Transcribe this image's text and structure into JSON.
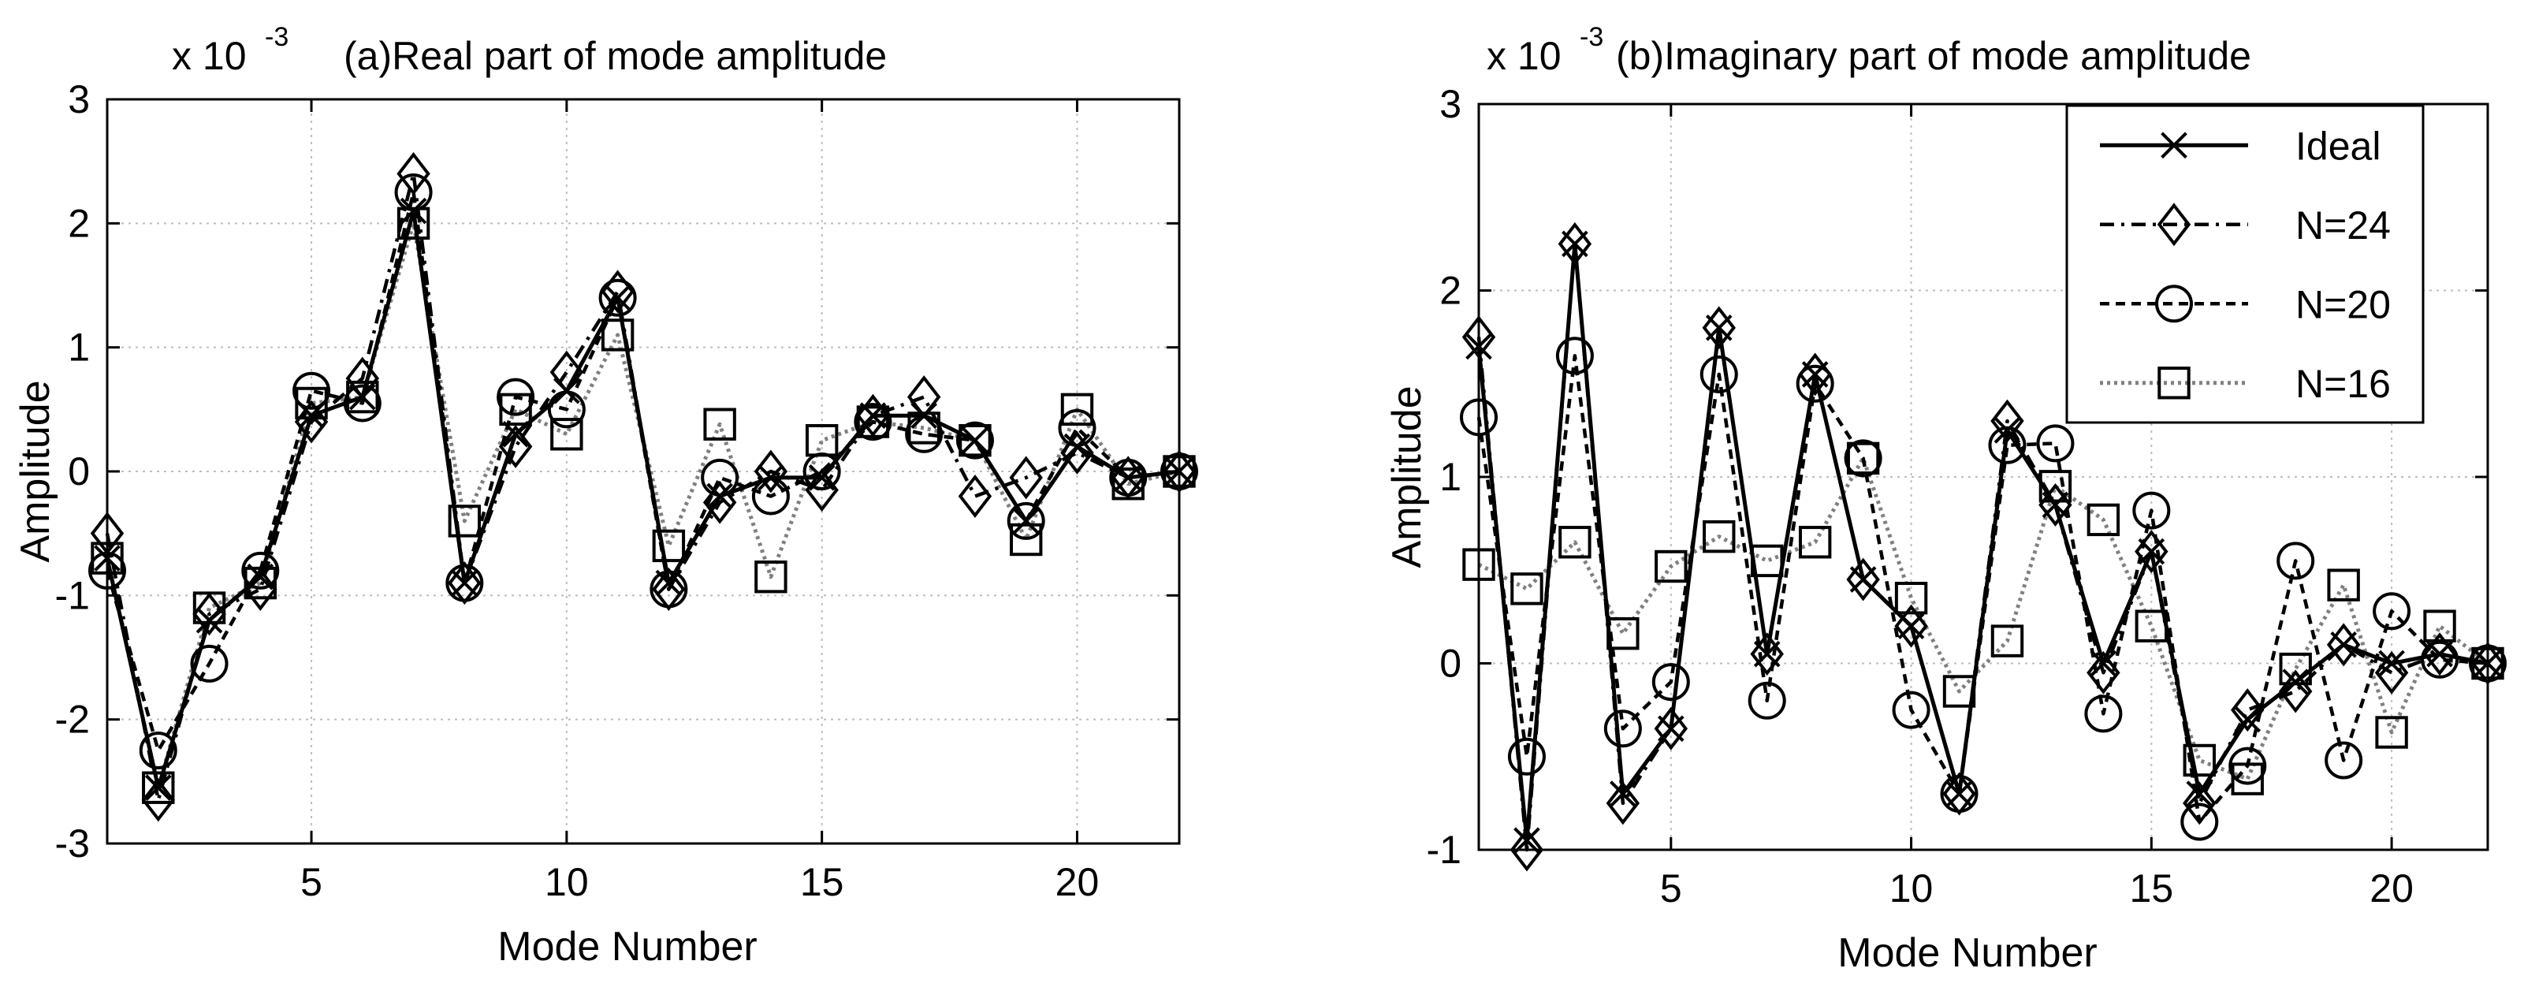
{
  "colors": {
    "background": "#ffffff",
    "ink": "#000000",
    "grid": "#bdbdbd",
    "n16_line": "#808080"
  },
  "chart_data": [
    {
      "type": "line",
      "id": "a",
      "title": "(a)Real part of mode amplitude",
      "exponent_label": "x 10",
      "exponent_power": "-3",
      "xlabel": "Mode Number",
      "ylabel": "Amplitude",
      "xlim": [
        1,
        22
      ],
      "ylim": [
        -3,
        3
      ],
      "xticks": [
        5,
        10,
        15,
        20
      ],
      "yticks": [
        -3,
        -2,
        -1,
        0,
        1,
        2,
        3
      ],
      "grid": true,
      "x": [
        1,
        2,
        3,
        4,
        5,
        6,
        7,
        8,
        9,
        10,
        11,
        12,
        13,
        14,
        15,
        16,
        17,
        18,
        19,
        20,
        21,
        22
      ],
      "series": [
        {
          "name": "Ideal",
          "marker": "x",
          "line": "solid",
          "values": [
            -0.7,
            -2.55,
            -1.2,
            -0.85,
            0.45,
            0.6,
            2.1,
            -0.9,
            0.3,
            0.65,
            1.4,
            -0.9,
            -0.2,
            -0.05,
            -0.05,
            0.45,
            0.45,
            0.25,
            -0.4,
            0.2,
            -0.05,
            0.0
          ]
        },
        {
          "name": "N=24",
          "marker": "diamond",
          "line": "dashdot",
          "values": [
            -0.5,
            -2.65,
            -1.15,
            -0.95,
            0.4,
            0.75,
            2.4,
            -0.9,
            0.2,
            0.8,
            1.45,
            -0.95,
            -0.25,
            0.0,
            -0.15,
            0.45,
            0.6,
            -0.2,
            -0.05,
            0.15,
            -0.05,
            0.0
          ]
        },
        {
          "name": "N=20",
          "marker": "circle",
          "line": "dashed",
          "values": [
            -0.8,
            -2.25,
            -1.55,
            -0.8,
            0.65,
            0.55,
            2.25,
            -0.9,
            0.6,
            0.5,
            1.4,
            -0.95,
            -0.05,
            -0.2,
            0.0,
            0.4,
            0.3,
            0.25,
            -0.4,
            0.35,
            -0.05,
            0.0
          ]
        },
        {
          "name": "N=16",
          "marker": "square",
          "line": "dotted",
          "values": [
            -0.7,
            -2.55,
            -1.1,
            -0.9,
            0.55,
            0.6,
            2.0,
            -0.4,
            0.5,
            0.3,
            1.1,
            -0.6,
            0.38,
            -0.85,
            0.25,
            0.4,
            0.35,
            0.25,
            -0.55,
            0.5,
            -0.1,
            0.0
          ]
        }
      ]
    },
    {
      "type": "line",
      "id": "b",
      "title": "(b)Imaginary part of mode amplitude",
      "exponent_label": "x 10",
      "exponent_power": "-3",
      "xlabel": "Mode Number",
      "ylabel": "Amplitude",
      "xlim": [
        1,
        22
      ],
      "ylim": [
        -1,
        3
      ],
      "xticks": [
        5,
        10,
        15,
        20
      ],
      "yticks": [
        -1,
        0,
        1,
        2,
        3
      ],
      "grid": true,
      "legend_position": "top-right",
      "x": [
        1,
        2,
        3,
        4,
        5,
        6,
        7,
        8,
        9,
        10,
        11,
        12,
        13,
        14,
        15,
        16,
        17,
        18,
        19,
        20,
        21,
        22
      ],
      "series": [
        {
          "name": "Ideal",
          "marker": "x",
          "line": "solid",
          "values": [
            1.7,
            -0.95,
            2.25,
            -0.7,
            -0.35,
            1.8,
            0.05,
            1.55,
            0.45,
            0.2,
            -0.7,
            1.25,
            0.85,
            0.0,
            0.6,
            -0.7,
            -0.3,
            -0.1,
            0.1,
            0.0,
            0.05,
            0.0
          ]
        },
        {
          "name": "N=24",
          "marker": "diamond",
          "line": "dashdot",
          "values": [
            1.75,
            -1.0,
            2.25,
            -0.75,
            -0.35,
            1.8,
            0.05,
            1.55,
            0.45,
            0.2,
            -0.7,
            1.3,
            0.85,
            -0.05,
            0.6,
            -0.75,
            -0.25,
            -0.15,
            0.1,
            -0.05,
            0.05,
            0.0
          ]
        },
        {
          "name": "N=20",
          "marker": "circle",
          "line": "dashed",
          "values": [
            1.32,
            -0.5,
            1.65,
            -0.35,
            -0.1,
            1.55,
            -0.2,
            1.5,
            1.1,
            -0.25,
            -0.7,
            1.17,
            1.18,
            -0.27,
            0.82,
            -0.85,
            -0.55,
            0.55,
            -0.52,
            0.28,
            0.02,
            0.0
          ]
        },
        {
          "name": "N=16",
          "marker": "square",
          "line": "dotted",
          "values": [
            0.53,
            0.4,
            0.65,
            0.16,
            0.52,
            0.68,
            0.55,
            0.65,
            1.1,
            0.35,
            -0.15,
            0.12,
            0.95,
            0.77,
            0.2,
            -0.52,
            -0.62,
            -0.03,
            0.42,
            -0.37,
            0.2,
            0.0
          ]
        }
      ]
    }
  ]
}
